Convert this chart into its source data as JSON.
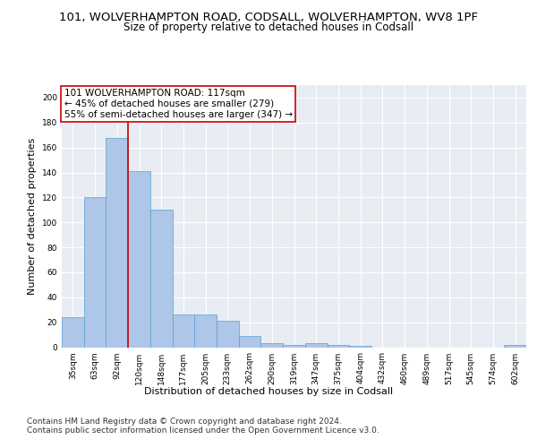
{
  "title1": "101, WOLVERHAMPTON ROAD, CODSALL, WOLVERHAMPTON, WV8 1PF",
  "title2": "Size of property relative to detached houses in Codsall",
  "xlabel": "Distribution of detached houses by size in Codsall",
  "ylabel": "Number of detached properties",
  "categories": [
    "35sqm",
    "63sqm",
    "92sqm",
    "120sqm",
    "148sqm",
    "177sqm",
    "205sqm",
    "233sqm",
    "262sqm",
    "290sqm",
    "319sqm",
    "347sqm",
    "375sqm",
    "404sqm",
    "432sqm",
    "460sqm",
    "489sqm",
    "517sqm",
    "545sqm",
    "574sqm",
    "602sqm"
  ],
  "values": [
    24,
    120,
    168,
    141,
    110,
    26,
    26,
    21,
    9,
    3,
    2,
    3,
    2,
    1,
    0,
    0,
    0,
    0,
    0,
    0,
    2
  ],
  "bar_color": "#aec6e8",
  "bar_edge_color": "#5a9fd4",
  "background_color": "#e8edf4",
  "grid_color": "#ffffff",
  "annotation_line1": "101 WOLVERHAMPTON ROAD: 117sqm",
  "annotation_line2": "← 45% of detached houses are smaller (279)",
  "annotation_line3": "55% of semi-detached houses are larger (347) →",
  "annotation_box_color": "#ffffff",
  "annotation_box_edge_color": "#cc0000",
  "vline_x": 2.5,
  "vline_color": "#cc0000",
  "ylim": [
    0,
    210
  ],
  "yticks": [
    0,
    20,
    40,
    60,
    80,
    100,
    120,
    140,
    160,
    180,
    200
  ],
  "footer1": "Contains HM Land Registry data © Crown copyright and database right 2024.",
  "footer2": "Contains public sector information licensed under the Open Government Licence v3.0.",
  "title1_fontsize": 9.5,
  "title2_fontsize": 8.5,
  "annotation_fontsize": 7.5,
  "tick_fontsize": 6.5,
  "ylabel_fontsize": 8,
  "xlabel_fontsize": 8,
  "footer_fontsize": 6.5
}
